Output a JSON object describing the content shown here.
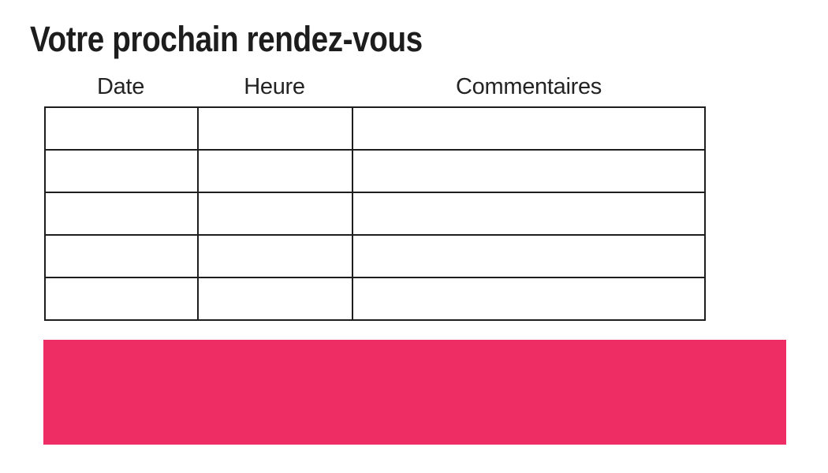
{
  "title": "Votre prochain rendez-vous",
  "table": {
    "headers": [
      "Date",
      "Heure",
      "Commentaires"
    ],
    "rows": [
      [
        "",
        "",
        ""
      ],
      [
        "",
        "",
        ""
      ],
      [
        "",
        "",
        ""
      ],
      [
        "",
        "",
        ""
      ],
      [
        "",
        "",
        ""
      ]
    ]
  },
  "pink_band": {
    "color": "#EE2D64"
  },
  "colors": {
    "background": "#FFFFFF",
    "border": "#1E1E1E",
    "title_text": "#1D1D1D",
    "header_text": "#232323"
  }
}
